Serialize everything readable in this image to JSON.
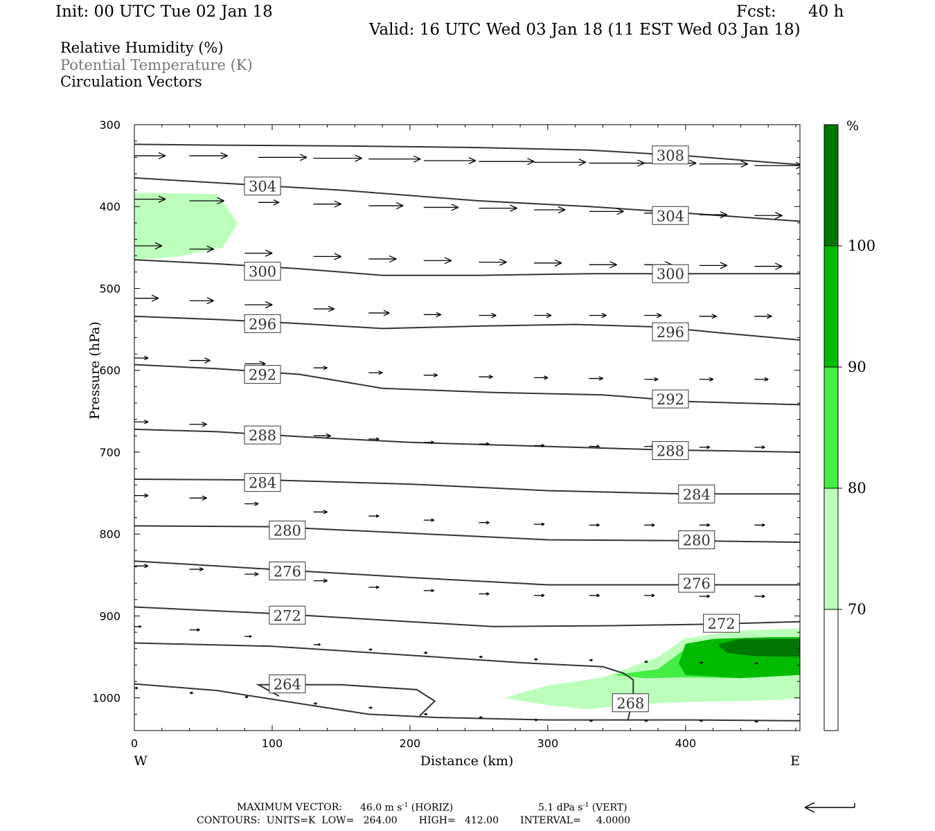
{
  "header": {
    "init": "Init: 00 UTC Tue 02 Jan 18",
    "fcst_label": "Fcst:",
    "fcst_value": "40 h",
    "valid": "Valid: 16 UTC Wed 03 Jan 18 (11 EST Wed 03 Jan 18)"
  },
  "legend": {
    "rh": "Relative Humidity (%)",
    "theta": "Potential Temperature (K)",
    "vectors": "Circulation Vectors",
    "theta_color": "#777777"
  },
  "chart_data": {
    "type": "cross-section",
    "xlabel": "Distance (km)",
    "ylabel": "Pressure (hPa)",
    "xlim": [
      0,
      483
    ],
    "ylim": [
      1040,
      300
    ],
    "x_ticks": [
      0,
      100,
      200,
      300,
      400
    ],
    "y_ticks": [
      300,
      400,
      500,
      600,
      700,
      800,
      900,
      1000
    ],
    "x_end_labels": {
      "left": "W",
      "right": "E"
    },
    "grid": false,
    "colorbar": {
      "unit": "%",
      "levels": [
        70,
        80,
        90,
        100
      ],
      "colors": [
        "#ffffff",
        "#bbffbb",
        "#44ee44",
        "#00bb00",
        "#007700"
      ]
    },
    "theta_contours": [
      {
        "value": 308,
        "points": [
          [
            0,
            324
          ],
          [
            60,
            325
          ],
          [
            150,
            326
          ],
          [
            250,
            328
          ],
          [
            330,
            331
          ],
          [
            400,
            338
          ],
          [
            483,
            349
          ]
        ],
        "labels": [
          [
            389,
            337
          ]
        ]
      },
      {
        "value": 304,
        "points": [
          [
            0,
            365
          ],
          [
            60,
            371
          ],
          [
            150,
            380
          ],
          [
            250,
            393
          ],
          [
            330,
            400
          ],
          [
            400,
            408
          ],
          [
            483,
            418
          ]
        ],
        "labels": [
          [
            93,
            375
          ],
          [
            389,
            411
          ]
        ]
      },
      {
        "value": 300,
        "points": [
          [
            0,
            465
          ],
          [
            60,
            470
          ],
          [
            120,
            476
          ],
          [
            180,
            484
          ],
          [
            250,
            484
          ],
          [
            330,
            482
          ],
          [
            400,
            482
          ],
          [
            483,
            482
          ]
        ],
        "labels": [
          [
            93,
            479
          ],
          [
            389,
            482
          ]
        ]
      },
      {
        "value": 296,
        "points": [
          [
            0,
            534
          ],
          [
            60,
            538
          ],
          [
            120,
            543
          ],
          [
            180,
            549
          ],
          [
            250,
            546
          ],
          [
            320,
            544
          ],
          [
            380,
            547
          ],
          [
            430,
            555
          ],
          [
            483,
            563
          ]
        ],
        "labels": [
          [
            93,
            543
          ],
          [
            389,
            553
          ]
        ]
      },
      {
        "value": 292,
        "points": [
          [
            0,
            593
          ],
          [
            60,
            598
          ],
          [
            120,
            605
          ],
          [
            180,
            622
          ],
          [
            260,
            627
          ],
          [
            340,
            630
          ],
          [
            400,
            638
          ],
          [
            483,
            642
          ]
        ],
        "labels": [
          [
            93,
            605
          ],
          [
            389,
            635
          ]
        ]
      },
      {
        "value": 288,
        "points": [
          [
            0,
            672
          ],
          [
            60,
            675
          ],
          [
            120,
            681
          ],
          [
            200,
            688
          ],
          [
            300,
            693
          ],
          [
            380,
            697
          ],
          [
            483,
            700
          ]
        ],
        "labels": [
          [
            93,
            679
          ],
          [
            389,
            698
          ]
        ]
      },
      {
        "value": 284,
        "points": [
          [
            0,
            733
          ],
          [
            100,
            734
          ],
          [
            200,
            739
          ],
          [
            300,
            747
          ],
          [
            400,
            751
          ],
          [
            483,
            751
          ]
        ],
        "labels": [
          [
            93,
            737
          ],
          [
            408,
            751
          ]
        ]
      },
      {
        "value": 280,
        "points": [
          [
            0,
            790
          ],
          [
            100,
            791
          ],
          [
            200,
            799
          ],
          [
            300,
            807
          ],
          [
            400,
            808
          ],
          [
            483,
            810
          ]
        ],
        "labels": [
          [
            111,
            795
          ],
          [
            408,
            807
          ]
        ]
      },
      {
        "value": 276,
        "points": [
          [
            0,
            833
          ],
          [
            100,
            843
          ],
          [
            200,
            853
          ],
          [
            300,
            862
          ],
          [
            400,
            862
          ],
          [
            483,
            862
          ]
        ],
        "labels": [
          [
            111,
            845
          ],
          [
            408,
            860
          ]
        ]
      },
      {
        "value": 272,
        "points": [
          [
            0,
            889
          ],
          [
            100,
            897
          ],
          [
            200,
            907
          ],
          [
            260,
            913
          ],
          [
            340,
            912
          ],
          [
            420,
            910
          ],
          [
            483,
            907
          ]
        ],
        "labels": [
          [
            111,
            899
          ],
          [
            426,
            909
          ]
        ]
      },
      {
        "value": 268,
        "points": [
          [
            0,
            933
          ],
          [
            100,
            937
          ],
          [
            200,
            948
          ],
          [
            280,
            957
          ],
          [
            340,
            962
          ],
          [
            355,
            970
          ],
          [
            362,
            978
          ],
          [
            362,
            1000
          ],
          [
            358,
            1028
          ]
        ],
        "labels": [
          [
            360,
            1006
          ]
        ]
      },
      {
        "value": 264,
        "points": [
          [
            0,
            983
          ],
          [
            60,
            991
          ],
          [
            120,
            1007
          ],
          [
            170,
            1020
          ],
          [
            220,
            1024
          ],
          [
            300,
            1027
          ],
          [
            400,
            1027
          ],
          [
            483,
            1028
          ]
        ],
        "labels": [
          [
            111,
            983
          ]
        ]
      },
      {
        "value": 264,
        "points": [
          [
            105,
            998
          ],
          [
            90,
            984
          ],
          [
            150,
            984
          ],
          [
            205,
            990
          ],
          [
            218,
            1004
          ],
          [
            207,
            1022
          ]
        ],
        "labels": []
      }
    ],
    "rh_regions": [
      {
        "level": "70-80",
        "points": [
          [
            0,
            383
          ],
          [
            60,
            385
          ],
          [
            75,
            420
          ],
          [
            64,
            450
          ],
          [
            32,
            461
          ],
          [
            0,
            465
          ]
        ]
      },
      {
        "level": "70-80",
        "points": [
          [
            268,
            1000
          ],
          [
            300,
            985
          ],
          [
            340,
            975
          ],
          [
            380,
            950
          ],
          [
            400,
            927
          ],
          [
            440,
            918
          ],
          [
            483,
            915
          ],
          [
            483,
            1001
          ],
          [
            440,
            1004
          ],
          [
            400,
            1005
          ],
          [
            360,
            1008
          ],
          [
            330,
            1014
          ],
          [
            300,
            1009
          ]
        ]
      },
      {
        "level": "80-90",
        "points": [
          [
            348,
            972
          ],
          [
            380,
            965
          ],
          [
            400,
            940
          ],
          [
            420,
            928
          ],
          [
            460,
            926
          ],
          [
            483,
            926
          ],
          [
            483,
            972
          ],
          [
            440,
            976
          ],
          [
            400,
            975
          ],
          [
            370,
            976
          ]
        ]
      },
      {
        "level": "90-100",
        "points": [
          [
            400,
            934
          ],
          [
            420,
            928
          ],
          [
            460,
            926
          ],
          [
            483,
            926
          ],
          [
            483,
            972
          ],
          [
            440,
            976
          ],
          [
            400,
            972
          ],
          [
            395,
            958
          ]
        ]
      },
      {
        "level": "100+",
        "points": [
          [
            423,
            935
          ],
          [
            440,
            928
          ],
          [
            483,
            928
          ],
          [
            483,
            950
          ],
          [
            450,
            949
          ],
          [
            430,
            945
          ]
        ]
      }
    ],
    "vectors": [
      [
        0,
        338,
        45
      ],
      [
        40,
        338,
        55
      ],
      [
        90,
        340,
        70
      ],
      [
        130,
        341,
        70
      ],
      [
        170,
        342,
        75
      ],
      [
        210,
        344,
        75
      ],
      [
        250,
        345,
        80
      ],
      [
        290,
        346,
        75
      ],
      [
        330,
        347,
        80
      ],
      [
        370,
        347,
        75
      ],
      [
        410,
        348,
        70
      ],
      [
        450,
        350,
        70
      ],
      [
        0,
        391,
        45
      ],
      [
        40,
        393,
        50
      ],
      [
        90,
        395,
        30
      ],
      [
        130,
        397,
        40
      ],
      [
        170,
        399,
        50
      ],
      [
        210,
        401,
        50
      ],
      [
        250,
        402,
        55
      ],
      [
        290,
        404,
        45
      ],
      [
        330,
        406,
        50
      ],
      [
        370,
        408,
        40
      ],
      [
        410,
        410,
        40
      ],
      [
        450,
        411,
        40
      ],
      [
        0,
        448,
        40
      ],
      [
        40,
        452,
        35
      ],
      [
        80,
        457,
        40
      ],
      [
        130,
        461,
        40
      ],
      [
        170,
        464,
        40
      ],
      [
        210,
        466,
        40
      ],
      [
        250,
        468,
        40
      ],
      [
        290,
        469,
        40
      ],
      [
        330,
        471,
        40
      ],
      [
        370,
        471,
        40
      ],
      [
        410,
        472,
        40
      ],
      [
        450,
        473,
        40
      ],
      [
        0,
        512,
        35
      ],
      [
        40,
        515,
        35
      ],
      [
        80,
        520,
        40
      ],
      [
        130,
        525,
        30
      ],
      [
        170,
        530,
        30
      ],
      [
        210,
        532,
        25
      ],
      [
        250,
        533,
        25
      ],
      [
        290,
        533,
        25
      ],
      [
        330,
        533,
        25
      ],
      [
        370,
        533,
        25
      ],
      [
        410,
        534,
        25
      ],
      [
        450,
        534,
        25
      ],
      [
        0,
        585,
        20
      ],
      [
        40,
        588,
        30
      ],
      [
        80,
        592,
        30
      ],
      [
        130,
        597,
        20
      ],
      [
        170,
        603,
        20
      ],
      [
        210,
        606,
        20
      ],
      [
        250,
        608,
        20
      ],
      [
        290,
        609,
        20
      ],
      [
        330,
        610,
        20
      ],
      [
        370,
        611,
        20
      ],
      [
        410,
        611,
        20
      ],
      [
        450,
        611,
        20
      ],
      [
        0,
        663,
        20
      ],
      [
        40,
        666,
        25
      ],
      [
        80,
        672,
        30
      ],
      [
        130,
        680,
        25
      ],
      [
        170,
        684,
        15
      ],
      [
        210,
        688,
        15
      ],
      [
        250,
        690,
        15
      ],
      [
        290,
        692,
        15
      ],
      [
        330,
        693,
        15
      ],
      [
        370,
        693,
        15
      ],
      [
        410,
        694,
        15
      ],
      [
        450,
        694,
        15
      ],
      [
        0,
        753,
        20
      ],
      [
        40,
        756,
        25
      ],
      [
        80,
        763,
        20
      ],
      [
        130,
        773,
        20
      ],
      [
        170,
        778,
        15
      ],
      [
        210,
        783,
        15
      ],
      [
        250,
        786,
        15
      ],
      [
        290,
        788,
        15
      ],
      [
        330,
        789,
        15
      ],
      [
        370,
        789,
        15
      ],
      [
        410,
        789,
        15
      ],
      [
        450,
        789,
        15
      ],
      [
        0,
        839,
        20
      ],
      [
        40,
        843,
        20
      ],
      [
        80,
        849,
        20
      ],
      [
        130,
        857,
        20
      ],
      [
        170,
        865,
        15
      ],
      [
        210,
        869,
        15
      ],
      [
        250,
        873,
        15
      ],
      [
        290,
        875,
        15
      ],
      [
        330,
        875,
        15
      ],
      [
        370,
        875,
        15
      ],
      [
        410,
        876,
        15
      ],
      [
        450,
        876,
        15
      ],
      [
        0,
        913,
        10
      ],
      [
        40,
        917,
        15
      ],
      [
        80,
        925,
        10
      ],
      [
        130,
        935,
        10
      ],
      [
        170,
        941,
        5
      ],
      [
        210,
        945,
        5
      ],
      [
        250,
        950,
        5
      ],
      [
        290,
        953,
        5
      ],
      [
        330,
        954,
        5
      ],
      [
        370,
        956,
        5
      ],
      [
        410,
        957,
        5
      ],
      [
        450,
        958,
        5
      ],
      [
        0,
        988,
        5
      ],
      [
        40,
        994,
        5
      ],
      [
        80,
        999,
        5
      ],
      [
        130,
        1007,
        5
      ],
      [
        170,
        1012,
        5
      ],
      [
        210,
        1020,
        5
      ],
      [
        250,
        1024,
        5
      ],
      [
        290,
        1027,
        5
      ],
      [
        330,
        1028,
        5
      ],
      [
        370,
        1028,
        5
      ],
      [
        410,
        1028,
        5
      ],
      [
        450,
        1029,
        5
      ]
    ]
  },
  "footer": {
    "maxvec_label": "MAXIMUM VECTOR:",
    "horiz_value": "46.0 m s",
    "horiz_exp": "-1",
    "horiz_tag": "(HORIZ)",
    "vert_value": "5.1 dPa s",
    "vert_exp": "-1",
    "vert_tag": "(VERT)",
    "contours": "CONTOURS:  UNITS=K  LOW=   264.00       HIGH=   412.00       INTERVAL=     4.0000"
  }
}
